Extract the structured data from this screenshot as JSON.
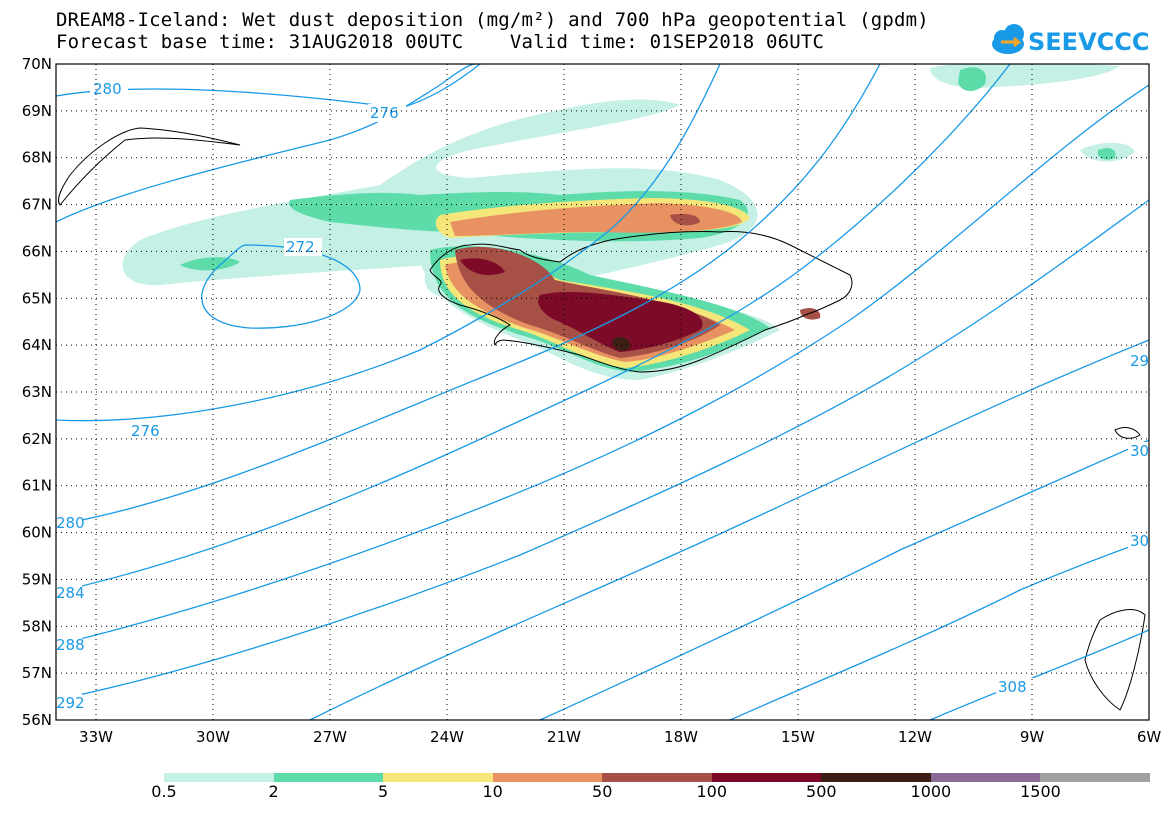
{
  "title_line1": "DREAM8-Iceland: Wet dust deposition (mg/m²) and 700 hPa geopotential (gpdm)",
  "title_line2": "Forecast base time: 31AUG2018 00UTC    Valid time: 01SEP2018 06UTC",
  "logo_text": "SEEVCCC",
  "lat_labels": [
    "70N",
    "69N",
    "68N",
    "67N",
    "66N",
    "65N",
    "64N",
    "63N",
    "62N",
    "61N",
    "60N",
    "59N",
    "58N",
    "57N",
    "56N"
  ],
  "lon_labels": [
    "33W",
    "30W",
    "27W",
    "24W",
    "21W",
    "18W",
    "15W",
    "12W",
    "9W",
    "6W"
  ],
  "contour_labels": [
    "280",
    "276",
    "272",
    "276",
    "280",
    "284",
    "288",
    "292",
    "308",
    "29",
    "30",
    "30"
  ],
  "colorbar": {
    "colors": [
      "#c4f0e6",
      "#5ddcaa",
      "#f5e679",
      "#e89162",
      "#a65046",
      "#7d0a28",
      "#3c1e14",
      "#8a6a96",
      "#a0a0a0"
    ],
    "labels": [
      "0.5",
      "2",
      "5",
      "10",
      "50",
      "100",
      "500",
      "1000",
      "1500"
    ]
  },
  "colors": {
    "contour": "#1a9ae6",
    "coast": "#000000"
  }
}
